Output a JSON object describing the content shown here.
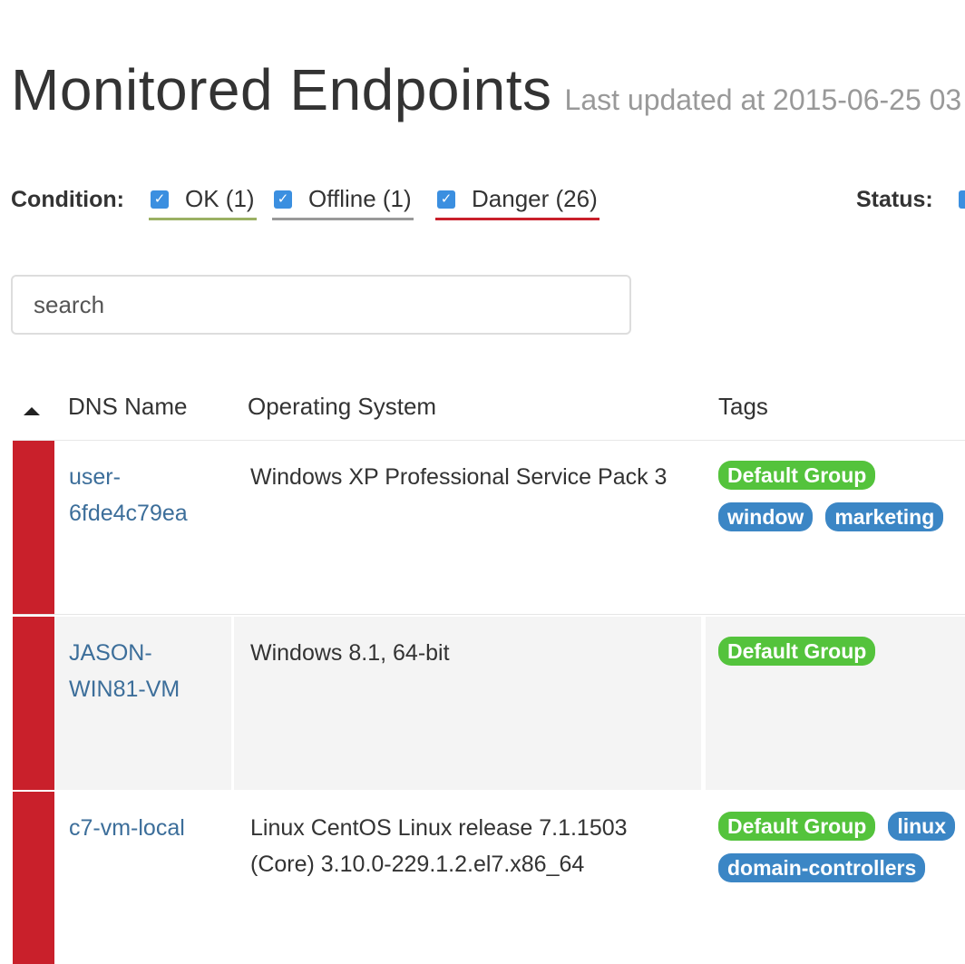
{
  "header": {
    "title": "Monitored Endpoints",
    "last_updated": "Last updated at 2015-06-25 03"
  },
  "filters": {
    "condition_label": "Condition:",
    "conditions": [
      {
        "label": "OK (1)",
        "checked": true,
        "color": "#9bb063"
      },
      {
        "label": "Offline (1)",
        "checked": true,
        "color": "#999999"
      },
      {
        "label": "Danger (26)",
        "checked": true,
        "color": "#c9202b"
      }
    ],
    "status_label": "Status:"
  },
  "search": {
    "placeholder": "search"
  },
  "table": {
    "columns": [
      "DNS Name",
      "Operating System",
      "Tags"
    ],
    "sort_icon": "sort-ascending-icon",
    "rows": [
      {
        "dns": "user-6fde4c79ea",
        "os": "Windows XP Professional Service Pack 3",
        "tags": [
          {
            "label": "Default Group",
            "color": "green"
          },
          {
            "label": "window",
            "color": "blue"
          },
          {
            "label": "marketing",
            "color": "blue"
          }
        ],
        "condition": "Danger"
      },
      {
        "dns": "JASON-WIN81-VM",
        "os": "Windows 8.1, 64-bit",
        "tags": [
          {
            "label": "Default Group",
            "color": "green"
          }
        ],
        "condition": "Danger"
      },
      {
        "dns": "c7-vm-local",
        "os": "Linux CentOS Linux release 7.1.1503 (Core) 3.10.0-229.1.2.el7.x86_64",
        "tags": [
          {
            "label": "Default Group",
            "color": "green"
          },
          {
            "label": "linux",
            "color": "blue"
          },
          {
            "label": "domain-controllers",
            "color": "blue"
          }
        ],
        "condition": "Danger"
      }
    ]
  }
}
